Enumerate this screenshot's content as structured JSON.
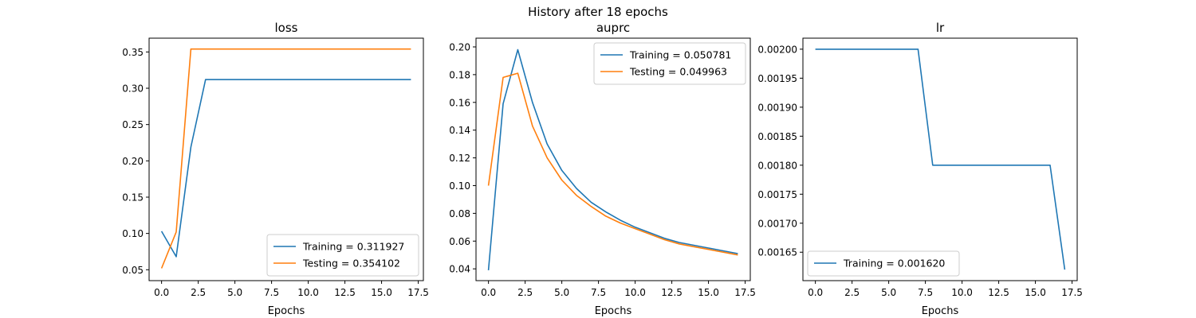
{
  "figure": {
    "suptitle": "History after 18 epochs"
  },
  "colors": {
    "training": "#1f77b4",
    "testing": "#ff7f0e",
    "axes": "#000000"
  },
  "chart_data": [
    {
      "type": "line",
      "title": "loss",
      "xlabel": "Epochs",
      "ylabel": "",
      "xlim": [
        -0.85,
        17.85
      ],
      "ylim": [
        0.035,
        0.369
      ],
      "xticks": [
        0,
        2.5,
        5,
        7.5,
        10,
        12.5,
        15,
        17.5
      ],
      "xtick_labels": [
        "0.0",
        "2.5",
        "5.0",
        "7.5",
        "10.0",
        "12.5",
        "15.0",
        "17.5"
      ],
      "yticks": [
        0.05,
        0.1,
        0.15,
        0.2,
        0.25,
        0.3,
        0.35
      ],
      "ytick_labels": [
        "0.05",
        "0.10",
        "0.15",
        "0.20",
        "0.25",
        "0.30",
        "0.35"
      ],
      "legend": "lower-right",
      "x": [
        0,
        1,
        2,
        3,
        4,
        5,
        6,
        7,
        8,
        9,
        10,
        11,
        12,
        13,
        14,
        15,
        16,
        17
      ],
      "series": [
        {
          "name": "Training = 0.311927",
          "color": "#1f77b4",
          "values": [
            0.103,
            0.068,
            0.219,
            0.312,
            0.312,
            0.312,
            0.312,
            0.312,
            0.312,
            0.312,
            0.312,
            0.312,
            0.312,
            0.312,
            0.312,
            0.312,
            0.312,
            0.312
          ]
        },
        {
          "name": "Testing = 0.354102",
          "color": "#ff7f0e",
          "values": [
            0.052,
            0.102,
            0.354,
            0.354,
            0.354,
            0.354,
            0.354,
            0.354,
            0.354,
            0.354,
            0.354,
            0.354,
            0.354,
            0.354,
            0.354,
            0.354,
            0.354,
            0.354
          ]
        }
      ]
    },
    {
      "type": "line",
      "title": "auprc",
      "xlabel": "Epochs",
      "ylabel": "",
      "xlim": [
        -0.85,
        17.85
      ],
      "ylim": [
        0.0315,
        0.2063
      ],
      "xticks": [
        0,
        2.5,
        5,
        7.5,
        10,
        12.5,
        15,
        17.5
      ],
      "xtick_labels": [
        "0.0",
        "2.5",
        "5.0",
        "7.5",
        "10.0",
        "12.5",
        "15.0",
        "17.5"
      ],
      "yticks": [
        0.04,
        0.06,
        0.08,
        0.1,
        0.12,
        0.14,
        0.16,
        0.18,
        0.2
      ],
      "ytick_labels": [
        "0.04",
        "0.06",
        "0.08",
        "0.10",
        "0.12",
        "0.14",
        "0.16",
        "0.18",
        "0.20"
      ],
      "legend": "top-right",
      "x": [
        0,
        1,
        2,
        3,
        4,
        5,
        6,
        7,
        8,
        9,
        10,
        11,
        12,
        13,
        14,
        15,
        16,
        17
      ],
      "series": [
        {
          "name": "Training = 0.050781",
          "color": "#1f77b4",
          "values": [
            0.039,
            0.159,
            0.198,
            0.16,
            0.13,
            0.111,
            0.098,
            0.088,
            0.081,
            0.075,
            0.07,
            0.066,
            0.062,
            0.059,
            0.057,
            0.055,
            0.053,
            0.051
          ]
        },
        {
          "name": "Testing = 0.049963",
          "color": "#ff7f0e",
          "values": [
            0.1,
            0.178,
            0.181,
            0.143,
            0.12,
            0.104,
            0.093,
            0.085,
            0.078,
            0.073,
            0.069,
            0.065,
            0.061,
            0.058,
            0.056,
            0.054,
            0.052,
            0.05
          ]
        }
      ]
    },
    {
      "type": "line",
      "title": "lr",
      "xlabel": "Epochs",
      "ylabel": "",
      "xlim": [
        -0.85,
        17.85
      ],
      "ylim": [
        0.001601,
        0.002019
      ],
      "xticks": [
        0,
        2.5,
        5,
        7.5,
        10,
        12.5,
        15,
        17.5
      ],
      "xtick_labels": [
        "0.0",
        "2.5",
        "5.0",
        "7.5",
        "10.0",
        "12.5",
        "15.0",
        "17.5"
      ],
      "yticks": [
        0.00165,
        0.0017,
        0.00175,
        0.0018,
        0.00185,
        0.0019,
        0.00195,
        0.002
      ],
      "ytick_labels": [
        "0.00165",
        "0.00170",
        "0.00175",
        "0.00180",
        "0.00185",
        "0.00190",
        "0.00195",
        "0.00200"
      ],
      "legend": "lower-left",
      "x": [
        0,
        1,
        2,
        3,
        4,
        5,
        6,
        7,
        8,
        9,
        10,
        11,
        12,
        13,
        14,
        15,
        16,
        17
      ],
      "series": [
        {
          "name": "Training = 0.001620",
          "color": "#1f77b4",
          "values": [
            0.002,
            0.002,
            0.002,
            0.002,
            0.002,
            0.002,
            0.002,
            0.002,
            0.0018,
            0.0018,
            0.0018,
            0.0018,
            0.0018,
            0.0018,
            0.0018,
            0.0018,
            0.0018,
            0.00162
          ]
        }
      ]
    }
  ]
}
